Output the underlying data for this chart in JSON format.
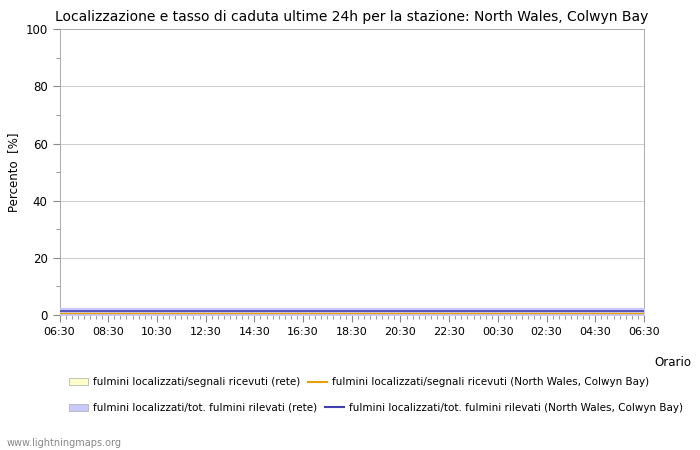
{
  "title": "Localizzazione e tasso di caduta ultime 24h per la stazione: North Wales, Colwyn Bay",
  "ylabel": "Percento  [%]",
  "xlabel_orario": "Orario",
  "yticks": [
    0,
    20,
    40,
    60,
    80,
    100
  ],
  "yminor": [
    10,
    30,
    50,
    70,
    90
  ],
  "ylim": [
    0,
    100
  ],
  "xtick_labels": [
    "06:30",
    "08:30",
    "10:30",
    "12:30",
    "14:30",
    "16:30",
    "18:30",
    "20:30",
    "22:30",
    "00:30",
    "02:30",
    "04:30",
    "06:30"
  ],
  "bg_color": "#ffffff",
  "plot_bg_color": "#ffffff",
  "grid_color": "#cccccc",
  "fill_rete_color": "#ffffc8",
  "fill_station_color": "#c8c8ff",
  "line_rete_color": "#e8a000",
  "line_station_color": "#4040b0",
  "fill_near_zero_value": 2.5,
  "watermark": "www.lightningmaps.org",
  "legend_items": [
    {
      "label": "fulmini localizzati/segnali ricevuti (rete)",
      "type": "patch",
      "color": "#ffffc8"
    },
    {
      "label": "fulmini localizzati/segnali ricevuti (North Wales, Colwyn Bay)",
      "type": "line",
      "color": "#e8a000"
    },
    {
      "label": "fulmini localizzati/tot. fulmini rilevati (rete)",
      "type": "patch",
      "color": "#c8c8ff"
    },
    {
      "label": "fulmini localizzati/tot. fulmini rilevati (North Wales, Colwyn Bay)",
      "type": "line",
      "color": "#4040b0"
    }
  ]
}
